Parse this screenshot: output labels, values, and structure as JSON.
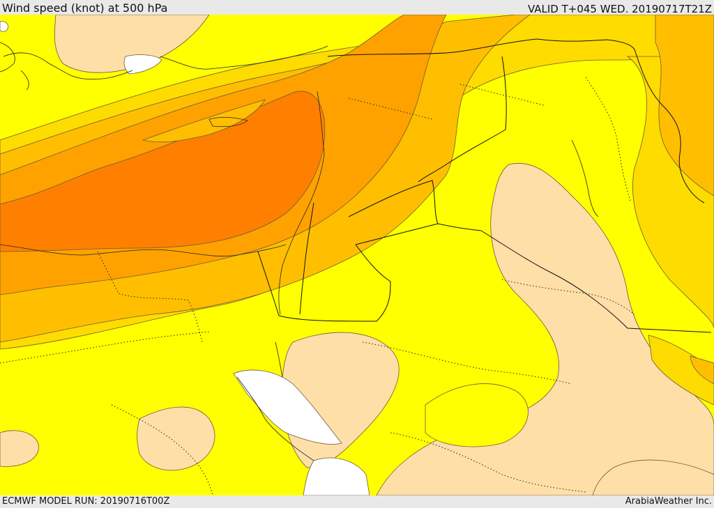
{
  "header": {
    "title": "Wind speed (knot) at 500 hPa",
    "valid": "VALID T+045 WED. 20190717T21Z"
  },
  "footer": {
    "model_run": "ECMWF MODEL RUN: 20190716T00Z",
    "credit": "ArabiaWeather Inc."
  },
  "colors": {
    "band_calm": "#ffffff",
    "band_1": "#ffdfa8",
    "band_2": "#ffff00",
    "band_3": "#ffdc00",
    "band_4": "#ffbf00",
    "band_5": "#ffa200",
    "band_6": "#ff8000"
  }
}
